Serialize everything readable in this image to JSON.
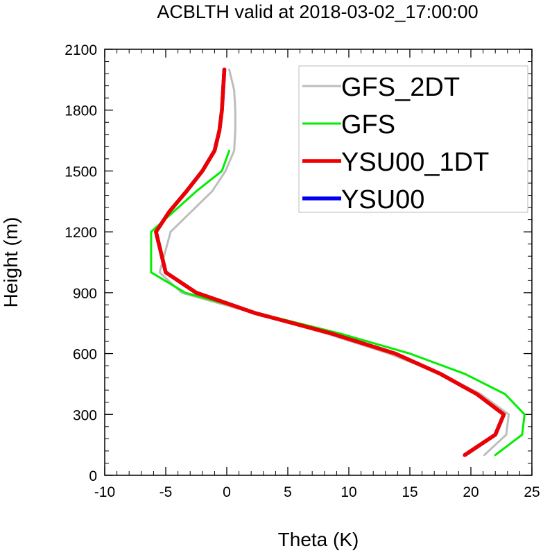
{
  "chart_data": {
    "type": "line",
    "title": "ACBLTH valid at 2018-03-02_17:00:00",
    "xlabel": "Theta (K)",
    "ylabel": "Height (m)",
    "xlim": [
      -10,
      25
    ],
    "ylim": [
      0,
      2100
    ],
    "x_ticks": [
      -10,
      -5,
      0,
      5,
      10,
      15,
      20,
      25
    ],
    "y_ticks": [
      0,
      300,
      600,
      900,
      1200,
      1500,
      1800,
      2100
    ],
    "x_tick_labels": [
      "-10",
      "-5",
      "0",
      "5",
      "10",
      "15",
      "20",
      "25"
    ],
    "y_tick_labels": [
      "0",
      "300",
      "600",
      "900",
      "1200",
      "1500",
      "1800",
      "2100"
    ],
    "grid": false,
    "legend_position": "top-right",
    "series": [
      {
        "name": "GFS_2DT",
        "color": "#bdbdbd",
        "line_width": "thin",
        "points": [
          [
            21.1,
            100
          ],
          [
            22.9,
            200
          ],
          [
            23.1,
            300
          ],
          [
            20.8,
            400
          ],
          [
            17.5,
            500
          ],
          [
            13.3,
            600
          ],
          [
            8.1,
            700
          ],
          [
            2.2,
            800
          ],
          [
            -3.7,
            900
          ],
          [
            -5.5,
            1000
          ],
          [
            -4.6,
            1200
          ],
          [
            -1.2,
            1400
          ],
          [
            -0.1,
            1500
          ],
          [
            0.6,
            1600
          ],
          [
            0.7,
            1700
          ],
          [
            0.7,
            1800
          ],
          [
            0.6,
            1900
          ],
          [
            0.2,
            2000
          ]
        ]
      },
      {
        "name": "GFS",
        "color": "#00ee00",
        "line_width": "thin",
        "points": [
          [
            22.0,
            100
          ],
          [
            24.2,
            200
          ],
          [
            24.4,
            300
          ],
          [
            22.8,
            400
          ],
          [
            19.5,
            500
          ],
          [
            15.0,
            600
          ],
          [
            9.2,
            700
          ],
          [
            2.5,
            800
          ],
          [
            -3.4,
            900
          ],
          [
            -6.2,
            1000
          ],
          [
            -6.2,
            1200
          ],
          [
            -2.5,
            1400
          ],
          [
            -0.4,
            1500
          ],
          [
            0.2,
            1600
          ]
        ]
      },
      {
        "name": "YSU00_1DT",
        "color": "#ee0000",
        "line_width": "thick",
        "points": [
          [
            19.5,
            100
          ],
          [
            22.0,
            200
          ],
          [
            22.7,
            300
          ],
          [
            20.5,
            400
          ],
          [
            17.5,
            500
          ],
          [
            13.8,
            600
          ],
          [
            8.5,
            700
          ],
          [
            2.3,
            800
          ],
          [
            -2.5,
            900
          ],
          [
            -5.0,
            1000
          ],
          [
            -5.8,
            1200
          ],
          [
            -4.7,
            1300
          ],
          [
            -3.3,
            1400
          ],
          [
            -2.0,
            1500
          ],
          [
            -1.0,
            1600
          ],
          [
            -0.6,
            1700
          ],
          [
            -0.4,
            1800
          ],
          [
            -0.3,
            1900
          ],
          [
            -0.2,
            2000
          ]
        ]
      },
      {
        "name": "YSU00",
        "color": "#0000ee",
        "line_width": "thick",
        "points": [
          [
            19.5,
            100
          ],
          [
            22.0,
            200
          ],
          [
            22.7,
            300
          ],
          [
            20.5,
            400
          ],
          [
            17.5,
            500
          ],
          [
            13.8,
            600
          ],
          [
            8.5,
            700
          ],
          [
            2.3,
            800
          ],
          [
            -2.5,
            900
          ],
          [
            -5.0,
            1000
          ],
          [
            -5.8,
            1200
          ],
          [
            -4.7,
            1300
          ],
          [
            -3.3,
            1400
          ],
          [
            -2.0,
            1500
          ],
          [
            -1.0,
            1600
          ],
          [
            -0.6,
            1700
          ],
          [
            -0.4,
            1800
          ],
          [
            -0.3,
            1900
          ],
          [
            -0.2,
            2000
          ]
        ]
      }
    ],
    "draw_order": [
      "YSU00",
      "GFS_2DT",
      "GFS",
      "YSU00_1DT"
    ]
  }
}
